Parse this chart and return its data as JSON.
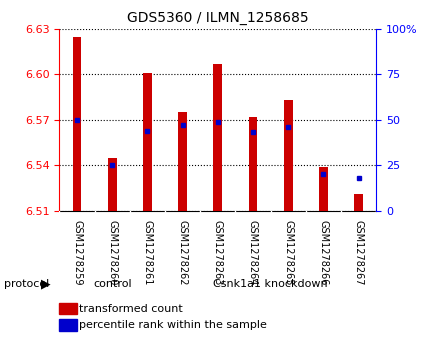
{
  "title": "GDS5360 / ILMN_1258685",
  "samples": [
    "GSM1278259",
    "GSM1278260",
    "GSM1278261",
    "GSM1278262",
    "GSM1278263",
    "GSM1278264",
    "GSM1278265",
    "GSM1278266",
    "GSM1278267"
  ],
  "transformed_counts": [
    6.625,
    6.545,
    6.601,
    6.575,
    6.607,
    6.572,
    6.583,
    6.539,
    6.521
  ],
  "percentile_ranks": [
    50,
    25,
    44,
    47,
    49,
    43,
    46,
    20,
    18
  ],
  "ylim": [
    6.51,
    6.63
  ],
  "yticks": [
    6.51,
    6.54,
    6.57,
    6.6,
    6.63
  ],
  "right_yticks": [
    0,
    25,
    50,
    75,
    100
  ],
  "bar_color": "#cc0000",
  "dot_color": "#0000cc",
  "bar_bottom": 6.51,
  "ctrl_count": 3,
  "xlabel_rotation": -90,
  "label_box_color": "#d3d3d3",
  "protocol_color": "#90ee90",
  "plot_bg": "#ffffff",
  "bar_width": 0.25
}
